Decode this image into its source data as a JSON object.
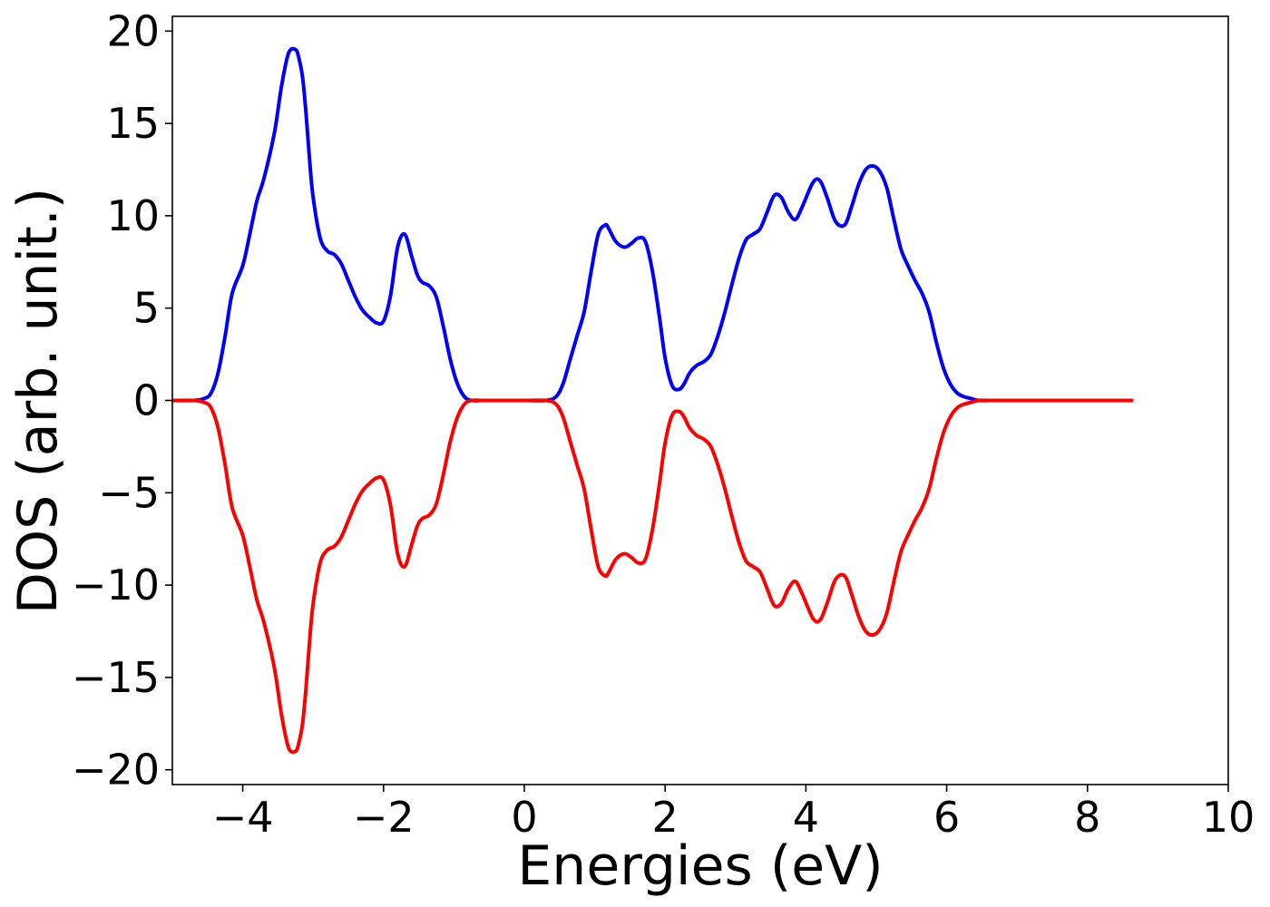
{
  "chart_data": {
    "type": "line",
    "title": "",
    "xlabel": "Energies (eV)",
    "ylabel": "DOS (arb. unit.)",
    "xlim": [
      -5,
      10
    ],
    "ylim": [
      -20.8,
      20.8
    ],
    "xticks": [
      -4,
      -2,
      0,
      2,
      4,
      6,
      8,
      10
    ],
    "xtick_labels": [
      "−4",
      "−2",
      "0",
      "2",
      "4",
      "6",
      "8",
      "10"
    ],
    "yticks": [
      20,
      15,
      10,
      5,
      0,
      -5,
      -10,
      -15,
      -20
    ],
    "ytick_labels": [
      "20",
      "15",
      "10",
      "5",
      "0",
      "−5",
      "−10",
      "−15",
      "−20"
    ],
    "grid": false,
    "legend": "none",
    "series": [
      {
        "color": "#0000ff",
        "x": [
          -5.0,
          -4.7,
          -4.55,
          -4.45,
          -4.35,
          -4.25,
          -4.15,
          -4.0,
          -3.9,
          -3.8,
          -3.7,
          -3.55,
          -3.45,
          -3.35,
          -3.25,
          -3.2,
          -3.15,
          -3.1,
          -3.05,
          -3.0,
          -2.9,
          -2.8,
          -2.7,
          -2.6,
          -2.5,
          -2.4,
          -2.3,
          -2.2,
          -2.1,
          -2.0,
          -1.9,
          -1.8,
          -1.7,
          -1.6,
          -1.52,
          -1.45,
          -1.35,
          -1.25,
          -1.15,
          -1.05,
          -0.95,
          -0.85,
          -0.75,
          -0.6,
          -0.5,
          -0.4,
          -0.3,
          0.0,
          0.3,
          0.45,
          0.55,
          0.65,
          0.75,
          0.85,
          0.95,
          1.05,
          1.15,
          1.2,
          1.3,
          1.42,
          1.52,
          1.62,
          1.72,
          1.82,
          1.92,
          2.0,
          2.1,
          2.2,
          2.27,
          2.35,
          2.45,
          2.55,
          2.65,
          2.75,
          2.85,
          2.95,
          3.05,
          3.15,
          3.25,
          3.35,
          3.45,
          3.55,
          3.65,
          3.75,
          3.85,
          3.95,
          4.1,
          4.2,
          4.3,
          4.42,
          4.55,
          4.65,
          4.75,
          4.85,
          4.95,
          5.05,
          5.15,
          5.25,
          5.35,
          5.45,
          5.55,
          5.65,
          5.75,
          5.85,
          5.95,
          6.05,
          6.15,
          6.25,
          6.35,
          6.45,
          6.6,
          6.75,
          6.9,
          7.0,
          7.5,
          8.0,
          8.65
        ],
        "values": [
          0,
          0,
          0.1,
          0.4,
          1.5,
          3.5,
          5.8,
          7.3,
          9.0,
          10.8,
          12.0,
          14.5,
          17.0,
          18.8,
          19.0,
          18.5,
          17.5,
          15.5,
          13.0,
          11.0,
          8.8,
          8.1,
          7.9,
          7.4,
          6.5,
          5.6,
          4.9,
          4.5,
          4.2,
          4.3,
          5.7,
          8.3,
          9.0,
          7.8,
          6.8,
          6.4,
          6.2,
          5.6,
          4.0,
          2.2,
          0.9,
          0.2,
          0,
          0,
          0,
          0,
          0,
          0,
          0,
          0.2,
          0.9,
          2.2,
          3.5,
          4.8,
          7.0,
          9.0,
          9.5,
          9.3,
          8.6,
          8.3,
          8.5,
          8.8,
          8.6,
          7.0,
          4.5,
          2.3,
          0.8,
          0.6,
          0.9,
          1.5,
          1.9,
          2.1,
          2.5,
          3.5,
          4.8,
          6.3,
          7.7,
          8.7,
          9.0,
          9.3,
          10.2,
          11.1,
          11.0,
          10.2,
          9.8,
          10.5,
          11.8,
          11.9,
          11.0,
          9.7,
          9.5,
          10.5,
          11.7,
          12.5,
          12.7,
          12.4,
          11.5,
          9.8,
          8.2,
          7.3,
          6.5,
          5.8,
          4.8,
          3.2,
          1.8,
          0.9,
          0.4,
          0.2,
          0.1,
          0,
          0,
          0,
          0,
          0,
          0,
          0,
          0
        ]
      },
      {
        "color": "#ff0000",
        "x": [
          -5.0,
          -4.7,
          -4.55,
          -4.45,
          -4.35,
          -4.25,
          -4.15,
          -4.0,
          -3.9,
          -3.8,
          -3.7,
          -3.55,
          -3.45,
          -3.35,
          -3.25,
          -3.2,
          -3.15,
          -3.1,
          -3.05,
          -3.0,
          -2.9,
          -2.8,
          -2.7,
          -2.6,
          -2.5,
          -2.4,
          -2.3,
          -2.2,
          -2.1,
          -2.0,
          -1.9,
          -1.8,
          -1.7,
          -1.6,
          -1.52,
          -1.45,
          -1.35,
          -1.25,
          -1.15,
          -1.05,
          -0.95,
          -0.85,
          -0.75,
          -0.6,
          -0.5,
          -0.4,
          -0.3,
          0.0,
          0.3,
          0.45,
          0.55,
          0.65,
          0.75,
          0.85,
          0.95,
          1.05,
          1.15,
          1.2,
          1.3,
          1.42,
          1.52,
          1.62,
          1.72,
          1.82,
          1.92,
          2.0,
          2.1,
          2.2,
          2.27,
          2.35,
          2.45,
          2.55,
          2.65,
          2.75,
          2.85,
          2.95,
          3.05,
          3.15,
          3.25,
          3.35,
          3.45,
          3.55,
          3.65,
          3.75,
          3.85,
          3.95,
          4.1,
          4.2,
          4.3,
          4.42,
          4.55,
          4.65,
          4.75,
          4.85,
          4.95,
          5.05,
          5.15,
          5.25,
          5.35,
          5.45,
          5.55,
          5.65,
          5.75,
          5.85,
          5.95,
          6.05,
          6.15,
          6.25,
          6.35,
          6.45,
          6.6,
          6.75,
          6.9,
          7.0,
          7.5,
          8.0,
          8.65
        ],
        "values": [
          0,
          0,
          -0.1,
          -0.4,
          -1.5,
          -3.5,
          -5.8,
          -7.3,
          -9.0,
          -10.8,
          -12.0,
          -14.5,
          -17.0,
          -18.8,
          -19.0,
          -18.5,
          -17.5,
          -15.5,
          -13.0,
          -11.0,
          -8.8,
          -8.1,
          -7.9,
          -7.4,
          -6.5,
          -5.6,
          -4.9,
          -4.5,
          -4.2,
          -4.3,
          -5.7,
          -8.3,
          -9.0,
          -7.8,
          -6.8,
          -6.4,
          -6.2,
          -5.6,
          -4.0,
          -2.2,
          -0.9,
          -0.2,
          0,
          0,
          0,
          0,
          0,
          0,
          0,
          -0.2,
          -0.9,
          -2.2,
          -3.5,
          -4.8,
          -7.0,
          -9.0,
          -9.5,
          -9.3,
          -8.6,
          -8.3,
          -8.5,
          -8.8,
          -8.6,
          -7.0,
          -4.5,
          -2.3,
          -0.8,
          -0.6,
          -0.9,
          -1.5,
          -1.9,
          -2.1,
          -2.5,
          -3.5,
          -4.8,
          -6.3,
          -7.7,
          -8.7,
          -9.0,
          -9.3,
          -10.2,
          -11.1,
          -11.0,
          -10.2,
          -9.8,
          -10.5,
          -11.8,
          -11.9,
          -11.0,
          -9.7,
          -9.5,
          -10.5,
          -11.7,
          -12.5,
          -12.7,
          -12.4,
          -11.5,
          -9.8,
          -8.2,
          -7.3,
          -6.5,
          -5.8,
          -4.8,
          -3.2,
          -1.8,
          -0.9,
          -0.4,
          -0.2,
          -0.1,
          0,
          0,
          0,
          0,
          0,
          0,
          0,
          0
        ]
      }
    ]
  }
}
